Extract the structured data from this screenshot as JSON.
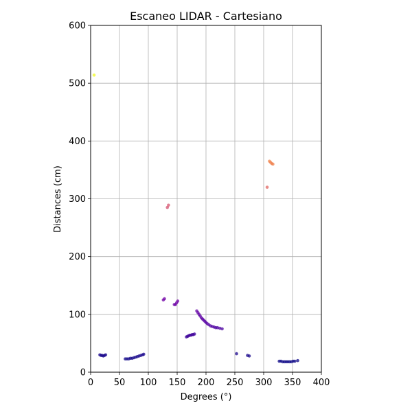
{
  "chart_data": {
    "type": "scatter",
    "title": "Escaneo LIDAR - Cartesiano",
    "xlabel": "Degrees (°)",
    "ylabel": "Distances (cm)",
    "xlim": [
      0,
      400
    ],
    "ylim": [
      0,
      600
    ],
    "xticks": [
      0,
      50,
      100,
      150,
      200,
      250,
      300,
      350,
      400
    ],
    "yticks": [
      0,
      100,
      200,
      300,
      400,
      500,
      600
    ],
    "grid": true,
    "colormap": "plasma",
    "color_by": "distance",
    "color_range": [
      18,
      514
    ],
    "points": [
      [
        6,
        514
      ],
      [
        16,
        30
      ],
      [
        18,
        29
      ],
      [
        20,
        29
      ],
      [
        22,
        28
      ],
      [
        24,
        29
      ],
      [
        26,
        30
      ],
      [
        60,
        23
      ],
      [
        63,
        23
      ],
      [
        66,
        23
      ],
      [
        69,
        24
      ],
      [
        72,
        24
      ],
      [
        75,
        25
      ],
      [
        78,
        26
      ],
      [
        81,
        27
      ],
      [
        84,
        28
      ],
      [
        87,
        29
      ],
      [
        90,
        30
      ],
      [
        92,
        31
      ],
      [
        126,
        125
      ],
      [
        128,
        127
      ],
      [
        133,
        285
      ],
      [
        135,
        289
      ],
      [
        145,
        117
      ],
      [
        147,
        117
      ],
      [
        149,
        120
      ],
      [
        151,
        123
      ],
      [
        166,
        61
      ],
      [
        168,
        62
      ],
      [
        170,
        63
      ],
      [
        172,
        64
      ],
      [
        174,
        64
      ],
      [
        176,
        65
      ],
      [
        178,
        65
      ],
      [
        180,
        66
      ],
      [
        184,
        106
      ],
      [
        186,
        103
      ],
      [
        188,
        100
      ],
      [
        190,
        97
      ],
      [
        192,
        94
      ],
      [
        194,
        92
      ],
      [
        196,
        90
      ],
      [
        198,
        88
      ],
      [
        200,
        86
      ],
      [
        202,
        84
      ],
      [
        205,
        82
      ],
      [
        208,
        80
      ],
      [
        211,
        79
      ],
      [
        214,
        78
      ],
      [
        217,
        77
      ],
      [
        220,
        77
      ],
      [
        224,
        76
      ],
      [
        228,
        75
      ],
      [
        253,
        32
      ],
      [
        272,
        29
      ],
      [
        275,
        28
      ],
      [
        306,
        320
      ],
      [
        310,
        365
      ],
      [
        312,
        363
      ],
      [
        314,
        361
      ],
      [
        316,
        360
      ],
      [
        327,
        19
      ],
      [
        330,
        19
      ],
      [
        333,
        18
      ],
      [
        336,
        18
      ],
      [
        339,
        18
      ],
      [
        342,
        18
      ],
      [
        345,
        18
      ],
      [
        348,
        18
      ],
      [
        351,
        19
      ],
      [
        354,
        19
      ],
      [
        359,
        20
      ]
    ]
  }
}
